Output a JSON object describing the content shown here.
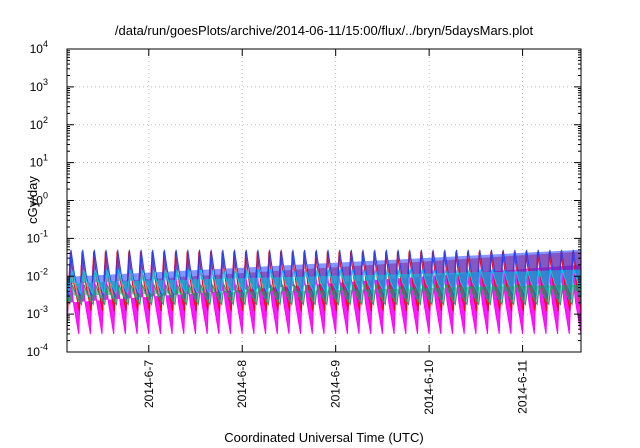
{
  "chart_data": {
    "type": "line",
    "title": "/data/run/goesPlots/archive/2014-06-11/15:00/flux/../bryn/5daysMars.plot",
    "xlabel": "Coordinated Universal Time (UTC)",
    "ylabel": "cGy/day",
    "yscale": "log",
    "ylim": [
      0.0001,
      10000
    ],
    "xlim": [
      "2014-06-06 03:00",
      "2014-06-11 15:00"
    ],
    "grid": true,
    "y_ticks": [
      {
        "base": "10",
        "exp": "-4"
      },
      {
        "base": "10",
        "exp": "-3"
      },
      {
        "base": "10",
        "exp": "-2"
      },
      {
        "base": "10",
        "exp": "-1"
      },
      {
        "base": "10",
        "exp": "0"
      },
      {
        "base": "10",
        "exp": "1"
      },
      {
        "base": "10",
        "exp": "2"
      },
      {
        "base": "10",
        "exp": "3"
      },
      {
        "base": "10",
        "exp": "4"
      }
    ],
    "x_ticks": [
      "2014-6-7",
      "2014-6-8",
      "2014-6-9",
      "2014-6-10",
      "2014-6-11"
    ],
    "cycle_hours": 3,
    "series": [
      {
        "color": "#ff00ff",
        "peak": 0.02,
        "trough": 0.0003
      },
      {
        "color": "#ff0000",
        "peak": 0.045,
        "trough": 0.0012
      },
      {
        "color": "#2040ff",
        "peak": 0.05,
        "trough": 0.0025
      },
      {
        "color": "#00ccdd",
        "peak": 0.015,
        "trough": 0.0035
      },
      {
        "color": "#1a9e6a",
        "peak": 0.006,
        "trough": 0.0018
      }
    ]
  }
}
